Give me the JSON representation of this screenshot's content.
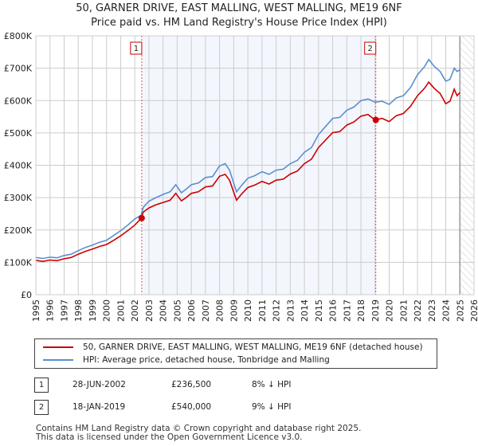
{
  "title": "50, GARNER DRIVE, EAST MALLING, WEST MALLING, ME19 6NF",
  "subtitle": "Price paid vs. HM Land Registry's House Price Index (HPI)",
  "chart_data": {
    "type": "line",
    "xlim": [
      1995,
      2026
    ],
    "ylim": [
      0,
      800000
    ],
    "x_ticks": [
      "1995",
      "1996",
      "1997",
      "1998",
      "1999",
      "2000",
      "2001",
      "2002",
      "2003",
      "2004",
      "2005",
      "2006",
      "2007",
      "2008",
      "2009",
      "2010",
      "2011",
      "2012",
      "2013",
      "2014",
      "2015",
      "2016",
      "2017",
      "2018",
      "2019",
      "2020",
      "2021",
      "2022",
      "2023",
      "2024",
      "2025",
      "2026"
    ],
    "y_ticks": [
      {
        "v": 0,
        "label": "£0"
      },
      {
        "v": 100000,
        "label": "£100K"
      },
      {
        "v": 200000,
        "label": "£200K"
      },
      {
        "v": 300000,
        "label": "£300K"
      },
      {
        "v": 400000,
        "label": "£400K"
      },
      {
        "v": 500000,
        "label": "£500K"
      },
      {
        "v": 600000,
        "label": "£600K"
      },
      {
        "v": 700000,
        "label": "£700K"
      },
      {
        "v": 800000,
        "label": "£800K"
      }
    ],
    "shaded_range": [
      2002.49,
      2019.05
    ],
    "hatched_from": 2025.0,
    "series": [
      {
        "name": "50, GARNER DRIVE, EAST MALLING, WEST MALLING, ME19 6NF (detached house)",
        "color": "#cc0000",
        "x": [
          1995,
          1995.5,
          1996,
          1996.5,
          1997,
          1997.5,
          1998,
          1998.5,
          1999,
          1999.5,
          2000,
          2000.5,
          2001,
          2001.5,
          2002,
          2002.45,
          2002.6,
          2003,
          2003.5,
          2004,
          2004.5,
          2004.9,
          2005.3,
          2005.6,
          2006,
          2006.5,
          2007,
          2007.5,
          2008,
          2008.4,
          2008.7,
          2009.2,
          2009.6,
          2010,
          2010.5,
          2011,
          2011.5,
          2012,
          2012.5,
          2013,
          2013.5,
          2014,
          2014.5,
          2015,
          2015.5,
          2016,
          2016.5,
          2017,
          2017.5,
          2018,
          2018.5,
          2019,
          2019.5,
          2020,
          2020.5,
          2021,
          2021.5,
          2022,
          2022.5,
          2022.8,
          2023.2,
          2023.6,
          2024,
          2024.3,
          2024.6,
          2024.8,
          2025
        ],
        "y": [
          106000,
          103000,
          107000,
          105000,
          111000,
          115000,
          125000,
          134000,
          141000,
          149000,
          155000,
          168000,
          182000,
          198000,
          215000,
          236000,
          255000,
          268000,
          278000,
          285000,
          292000,
          313000,
          290000,
          299000,
          313000,
          318000,
          333000,
          336000,
          366000,
          372000,
          354000,
          292000,
          313000,
          331000,
          339000,
          350000,
          342000,
          354000,
          357000,
          373000,
          382000,
          405000,
          419000,
          455000,
          478000,
          501000,
          504000,
          524000,
          534000,
          552000,
          557000,
          540000,
          545000,
          535000,
          553000,
          560000,
          582000,
          615000,
          638000,
          657000,
          637000,
          622000,
          590000,
          598000,
          635000,
          615000,
          625000
        ]
      },
      {
        "name": "HPI: Average price, detached house, Tonbridge and Malling",
        "color": "#5b8fd0",
        "x": [
          1995,
          1995.5,
          1996,
          1996.5,
          1997,
          1997.5,
          1998,
          1998.5,
          1999,
          1999.5,
          2000,
          2000.5,
          2001,
          2001.5,
          2002,
          2002.45,
          2002.6,
          2003,
          2003.5,
          2004,
          2004.5,
          2004.9,
          2005.3,
          2005.6,
          2006,
          2006.5,
          2007,
          2007.5,
          2008,
          2008.4,
          2008.7,
          2009.2,
          2009.6,
          2010,
          2010.5,
          2011,
          2011.5,
          2012,
          2012.5,
          2013,
          2013.5,
          2014,
          2014.5,
          2015,
          2015.5,
          2016,
          2016.5,
          2017,
          2017.5,
          2018,
          2018.5,
          2019,
          2019.5,
          2020,
          2020.5,
          2021,
          2021.5,
          2022,
          2022.5,
          2022.8,
          2023.2,
          2023.6,
          2024,
          2024.3,
          2024.6,
          2024.8,
          2025
        ],
        "y": [
          115000,
          112000,
          116000,
          114000,
          121000,
          125000,
          136000,
          146000,
          153000,
          162000,
          168000,
          183000,
          198000,
          215000,
          234000,
          246000,
          270000,
          289000,
          300000,
          310000,
          318000,
          340000,
          315000,
          325000,
          340000,
          345000,
          362000,
          365000,
          398000,
          405000,
          385000,
          318000,
          340000,
          360000,
          368000,
          380000,
          372000,
          385000,
          388000,
          405000,
          415000,
          440000,
          455000,
          495000,
          520000,
          545000,
          548000,
          570000,
          580000,
          600000,
          605000,
          595000,
          598000,
          588000,
          608000,
          615000,
          640000,
          680000,
          705000,
          727000,
          705000,
          690000,
          660000,
          665000,
          700000,
          690000,
          695000
        ]
      }
    ],
    "transactions": [
      {
        "label": "1",
        "x": 2002.49,
        "y": 236500
      },
      {
        "label": "2",
        "x": 2019.05,
        "y": 540000
      }
    ]
  },
  "legend": [
    "50, GARNER DRIVE, EAST MALLING, WEST MALLING, ME19 6NF (detached house)",
    "HPI: Average price, detached house, Tonbridge and Malling"
  ],
  "table": [
    {
      "num": "1",
      "date": "28-JUN-2002",
      "price": "£236,500",
      "hpi": "8% ↓ HPI"
    },
    {
      "num": "2",
      "date": "18-JAN-2019",
      "price": "£540,000",
      "hpi": "9% ↓ HPI"
    }
  ],
  "footer": [
    "Contains HM Land Registry data © Crown copyright and database right 2025.",
    "This data is licensed under the Open Government Licence v3.0."
  ]
}
